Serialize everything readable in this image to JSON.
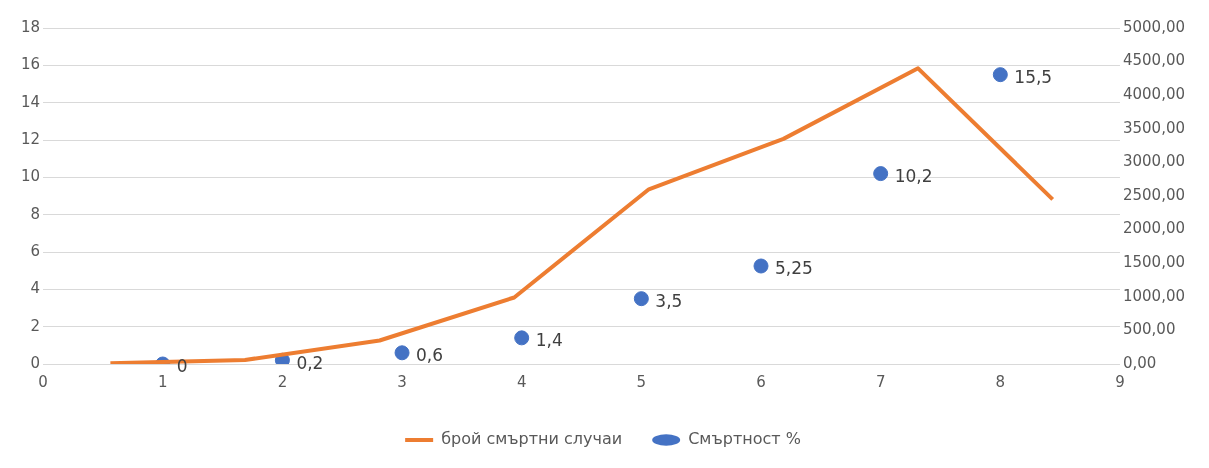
{
  "chart_data": {
    "type": "scatter",
    "xlim": [
      0,
      9
    ],
    "xticks": [
      0,
      1,
      2,
      3,
      4,
      5,
      6,
      7,
      8,
      9
    ],
    "ylim": [
      0,
      18
    ],
    "yticks": [
      0,
      2,
      4,
      6,
      8,
      10,
      12,
      14,
      16,
      18
    ],
    "y2lim": [
      0,
      5000
    ],
    "y2ticks": [
      {
        "value": 0,
        "label": "0,00"
      },
      {
        "value": 500,
        "label": "500,00"
      },
      {
        "value": 1000,
        "label": "1000,00"
      },
      {
        "value": 1500,
        "label": "1500,00"
      },
      {
        "value": 2000,
        "label": "2000,00"
      },
      {
        "value": 2500,
        "label": "2500,00"
      },
      {
        "value": 3000,
        "label": "3000,00"
      },
      {
        "value": 3500,
        "label": "3500,00"
      },
      {
        "value": 4000,
        "label": "4000,00"
      },
      {
        "value": 4500,
        "label": "4500,00"
      },
      {
        "value": 5000,
        "label": "5000,00"
      }
    ],
    "grid": "y",
    "legend": "bottom",
    "series": [
      {
        "name": "брой смъртни случаи",
        "type": "line",
        "axis": "y2",
        "color": "#ed7d31",
        "marker": "none",
        "x": [
          0.5625,
          1.6875,
          2.8125,
          3.9375,
          5.0625,
          6.1875,
          7.3125,
          8.4375
        ],
        "values": [
          10,
          60,
          350,
          990,
          2600,
          3350,
          4400,
          2450
        ]
      },
      {
        "name": "Смъртност %",
        "type": "scatter",
        "color": "#4472c4",
        "marker": "circle",
        "x": [
          1,
          2,
          3,
          4,
          5,
          6,
          7,
          8
        ],
        "values": [
          0,
          0.2,
          0.6,
          1.4,
          3.5,
          5.25,
          10.2,
          15.5
        ],
        "value_labels": [
          "0",
          "0,2",
          "0,6",
          "1,4",
          "3,5",
          "5,25",
          "10,2",
          "15,5"
        ]
      }
    ]
  }
}
